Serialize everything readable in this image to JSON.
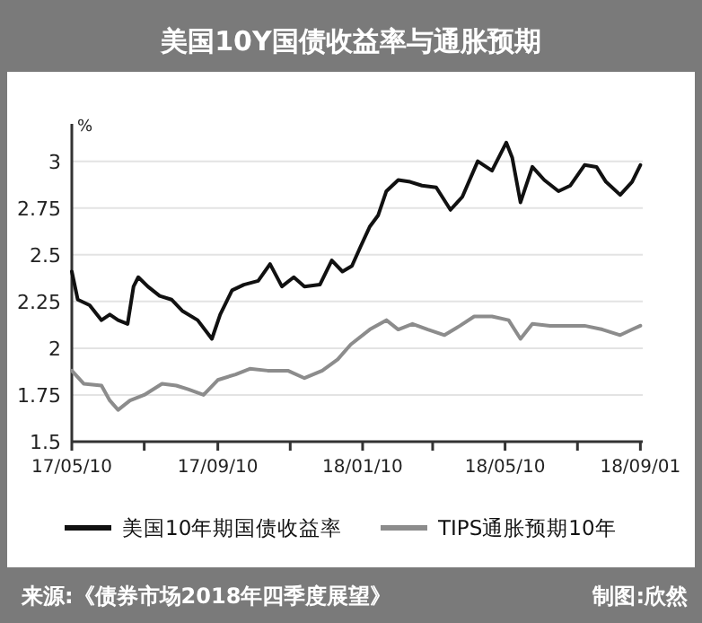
{
  "chart_data": {
    "type": "line",
    "title": "美国10Y国债收益率与通胀预期",
    "ylabel": "%",
    "annotations": [
      "来源:《债券市场2018年四季度展望》",
      "制图:欣然"
    ],
    "series": [
      {
        "name": "美国10年期国债收益率",
        "color": "#111111",
        "x": [
          "2017-05-10",
          "2017-05-15",
          "2017-05-25",
          "2017-06-04",
          "2017-06-11",
          "2017-06-18",
          "2017-06-26",
          "2017-07-01",
          "2017-07-05",
          "2017-07-13",
          "2017-07-23",
          "2017-08-02",
          "2017-08-11",
          "2017-08-24",
          "2017-09-05",
          "2017-09-12",
          "2017-09-22",
          "2017-10-02",
          "2017-10-14",
          "2017-10-24",
          "2017-11-03",
          "2017-11-13",
          "2017-11-22",
          "2017-12-05",
          "2017-12-15",
          "2017-12-24",
          "2018-01-01",
          "2018-01-08",
          "2018-01-16",
          "2018-01-23",
          "2018-01-30",
          "2018-02-09",
          "2018-02-19",
          "2018-03-01",
          "2018-03-13",
          "2018-03-25",
          "2018-04-04",
          "2018-04-17",
          "2018-04-29",
          "2018-05-11",
          "2018-05-16",
          "2018-05-23",
          "2018-06-02",
          "2018-06-12",
          "2018-06-24",
          "2018-07-04",
          "2018-07-16",
          "2018-07-26",
          "2018-08-03",
          "2018-08-15",
          "2018-08-25",
          "2018-09-01"
        ],
        "values": [
          2.41,
          2.26,
          2.23,
          2.15,
          2.18,
          2.15,
          2.13,
          2.33,
          2.38,
          2.33,
          2.28,
          2.26,
          2.2,
          2.15,
          2.05,
          2.18,
          2.31,
          2.34,
          2.36,
          2.45,
          2.33,
          2.38,
          2.33,
          2.34,
          2.47,
          2.41,
          2.44,
          2.54,
          2.65,
          2.71,
          2.84,
          2.9,
          2.89,
          2.87,
          2.86,
          2.74,
          2.81,
          3.0,
          2.95,
          3.1,
          3.02,
          2.78,
          2.97,
          2.9,
          2.84,
          2.87,
          2.98,
          2.97,
          2.89,
          2.82,
          2.89,
          2.98
        ]
      },
      {
        "name": "TIPS通胀预期10年",
        "color": "#8c8c8c",
        "x": [
          "2017-05-10",
          "2017-05-20",
          "2017-06-04",
          "2017-06-11",
          "2017-06-18",
          "2017-06-28",
          "2017-07-10",
          "2017-07-25",
          "2017-08-06",
          "2017-08-16",
          "2017-08-29",
          "2017-09-10",
          "2017-09-25",
          "2017-10-07",
          "2017-10-22",
          "2017-11-08",
          "2017-11-22",
          "2017-12-07",
          "2017-12-20",
          "2017-12-31",
          "2018-01-16",
          "2018-01-30",
          "2018-02-09",
          "2018-02-21",
          "2018-03-06",
          "2018-03-20",
          "2018-04-02",
          "2018-04-14",
          "2018-04-29",
          "2018-05-13",
          "2018-05-23",
          "2018-06-02",
          "2018-06-17",
          "2018-07-02",
          "2018-07-16",
          "2018-07-31",
          "2018-08-15",
          "2018-08-25",
          "2018-09-01"
        ],
        "values": [
          1.88,
          1.81,
          1.8,
          1.72,
          1.67,
          1.72,
          1.75,
          1.81,
          1.8,
          1.78,
          1.75,
          1.83,
          1.86,
          1.89,
          1.88,
          1.88,
          1.84,
          1.88,
          1.94,
          2.02,
          2.1,
          2.15,
          2.1,
          2.13,
          2.1,
          2.07,
          2.12,
          2.17,
          2.17,
          2.15,
          2.05,
          2.13,
          2.12,
          2.12,
          2.12,
          2.1,
          2.07,
          2.1,
          2.12
        ]
      }
    ],
    "xlim": [
      "2017-05-10",
      "2018-09-03"
    ],
    "xticks": [
      {
        "value": "2017-05-10",
        "label": "17/05/10"
      },
      {
        "value": "2017-07-10",
        "label": null
      },
      {
        "value": "2017-09-10",
        "label": "17/09/10"
      },
      {
        "value": "2017-11-10",
        "label": null
      },
      {
        "value": "2018-01-10",
        "label": "18/01/10"
      },
      {
        "value": "2018-03-10",
        "label": null
      },
      {
        "value": "2018-05-10",
        "label": "18/05/10"
      },
      {
        "value": "2018-07-10",
        "label": null
      },
      {
        "value": "2018-09-01",
        "label": "18/09/01"
      }
    ],
    "ylim": [
      1.5,
      3.2
    ],
    "yticks": [
      1.5,
      1.75,
      2,
      2.25,
      2.5,
      2.75,
      3
    ],
    "grid": "y",
    "legend": "bottom",
    "marker": "none",
    "line_style": "solid"
  }
}
